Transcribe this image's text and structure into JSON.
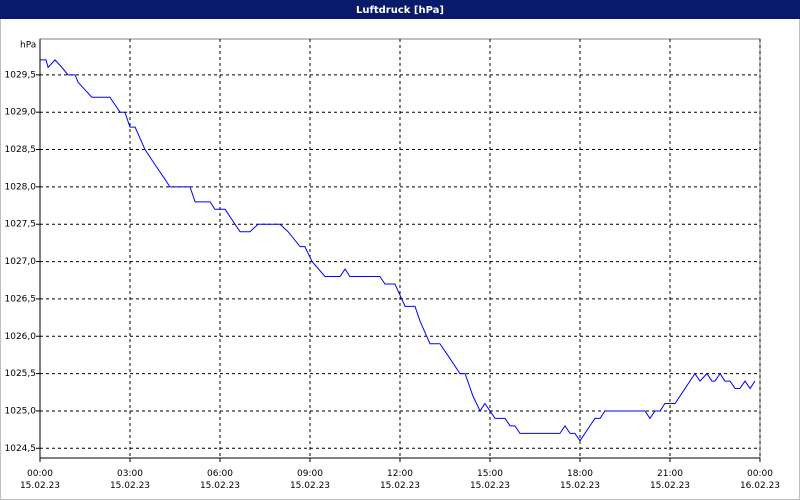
{
  "chart_data": {
    "type": "line",
    "title": "Luftdruck [hPa]",
    "y_label": "hPa",
    "xlim": [
      0,
      24
    ],
    "xticks": [
      {
        "value": 0,
        "label": "00:00 15.02.23"
      },
      {
        "value": 3,
        "label": "03:00 15.02.23"
      },
      {
        "value": 6,
        "label": "06:00 15.02.23"
      },
      {
        "value": 9,
        "label": "09:00 15.02.23"
      },
      {
        "value": 12,
        "label": "12:00 15.02.23"
      },
      {
        "value": 15,
        "label": "15:00 15.02.23"
      },
      {
        "value": 18,
        "label": "18:00 15.02.23"
      },
      {
        "value": 21,
        "label": "21:00 15.02.23"
      },
      {
        "value": 24,
        "label": "00:00 16.02.23"
      }
    ],
    "ylim": [
      1024.37,
      1029.98
    ],
    "yticks": [
      {
        "value": 1024.5,
        "label": "1024,5"
      },
      {
        "value": 1025,
        "label": "1025,0"
      },
      {
        "value": 1025.5,
        "label": "1025,5"
      },
      {
        "value": 1026,
        "label": "1026,0"
      },
      {
        "value": 1026.5,
        "label": "1026,5"
      },
      {
        "value": 1027,
        "label": "1027,0"
      },
      {
        "value": 1027.5,
        "label": "1027,5"
      },
      {
        "value": 1028,
        "label": "1028,0"
      },
      {
        "value": 1028.5,
        "label": "1028,5"
      },
      {
        "value": 1029,
        "label": "1029,0"
      },
      {
        "value": 1029.5,
        "label": "1029,5"
      }
    ],
    "grid": true,
    "x": [
      0,
      0.2,
      0.27,
      0.5,
      0.73,
      0.93,
      1.17,
      1.27,
      1.5,
      1.73,
      2.33,
      2.5,
      2.67,
      2.83,
      3.0,
      3.17,
      3.5,
      3.83,
      4.17,
      4.33,
      5.0,
      5.17,
      5.67,
      5.83,
      6.17,
      6.5,
      6.67,
      7.0,
      7.27,
      8.0,
      8.27,
      8.67,
      8.83,
      9.07,
      9.5,
      10.0,
      10.17,
      10.33,
      11.33,
      11.5,
      11.83,
      12.17,
      12.5,
      12.67,
      13.0,
      13.33,
      13.67,
      14.0,
      14.17,
      14.43,
      14.67,
      14.83,
      15.0,
      15.17,
      15.5,
      15.67,
      15.83,
      16.0,
      17.33,
      17.5,
      17.67,
      17.83,
      18.0,
      18.33,
      18.5,
      18.67,
      18.83,
      20.17,
      20.33,
      20.5,
      20.67,
      20.83,
      21.17,
      21.5,
      21.83,
      22.0,
      22.23,
      22.4,
      22.5,
      22.67,
      22.83,
      23.0,
      23.17,
      23.33,
      23.5,
      23.67,
      23.83
    ],
    "series": [
      {
        "name": "Luftdruck",
        "color": "#0000ff",
        "values": [
          1029.7,
          1029.7,
          1029.6,
          1029.7,
          1029.6,
          1029.5,
          1029.5,
          1029.4,
          1029.3,
          1029.2,
          1029.2,
          1029.1,
          1029.0,
          1029.0,
          1028.8,
          1028.8,
          1028.5,
          1028.3,
          1028.1,
          1028.0,
          1028.0,
          1027.8,
          1027.8,
          1027.7,
          1027.7,
          1027.5,
          1027.4,
          1027.4,
          1027.5,
          1027.5,
          1027.4,
          1027.2,
          1027.2,
          1027.0,
          1026.8,
          1026.8,
          1026.9,
          1026.8,
          1026.8,
          1026.7,
          1026.7,
          1026.4,
          1026.4,
          1026.2,
          1025.9,
          1025.9,
          1025.7,
          1025.5,
          1025.5,
          1025.2,
          1025.0,
          1025.1,
          1025.0,
          1024.9,
          1024.9,
          1024.8,
          1024.8,
          1024.7,
          1024.7,
          1024.8,
          1024.7,
          1024.7,
          1024.6,
          1024.8,
          1024.9,
          1024.9,
          1025.0,
          1025.0,
          1024.9,
          1025.0,
          1025.0,
          1025.1,
          1025.1,
          1025.3,
          1025.5,
          1025.4,
          1025.5,
          1025.4,
          1025.4,
          1025.5,
          1025.4,
          1025.4,
          1025.3,
          1025.3,
          1025.4,
          1025.3,
          1025.4
        ]
      }
    ]
  }
}
